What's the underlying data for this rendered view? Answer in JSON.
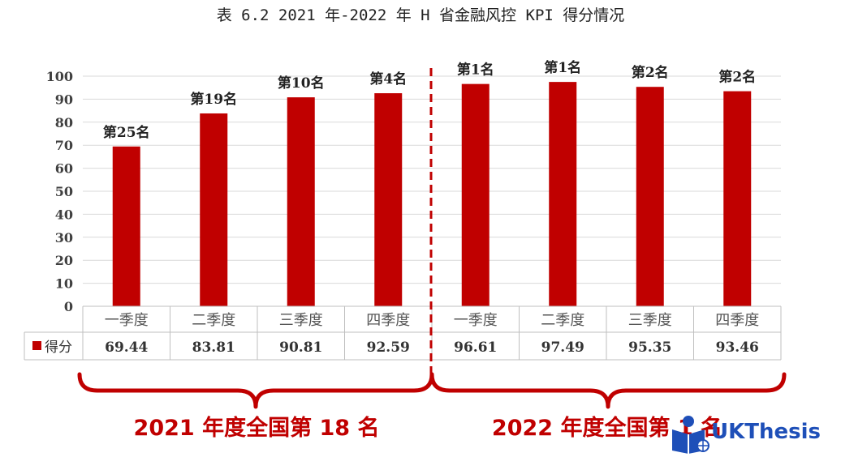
{
  "figure_title": "表 6.2  2021 年-2022 年 H 省金融风控 KPI 得分情况",
  "chart_data": {
    "type": "bar",
    "title": "表 6.2  2021 年-2022 年 H 省金融风控 KPI 得分情况",
    "categories": [
      "一季度",
      "二季度",
      "三季度",
      "四季度",
      "一季度",
      "二季度",
      "三季度",
      "四季度"
    ],
    "series": [
      {
        "name": "得分",
        "color": "#c00000",
        "values": [
          69.44,
          83.81,
          90.81,
          92.59,
          96.61,
          97.49,
          95.35,
          93.46
        ],
        "value_labels": [
          "69.44",
          "83.81",
          "90.81",
          "92.59",
          "96.61",
          "97.49",
          "95.35",
          "93.46"
        ]
      }
    ],
    "annotations": [
      "第25名",
      "第19名",
      "第10名",
      "第4名",
      "第1名",
      "第1名",
      "第2名",
      "第2名"
    ],
    "yticks": [
      0,
      10,
      20,
      30,
      40,
      50,
      60,
      70,
      80,
      90,
      100
    ],
    "ylim": [
      0,
      100
    ],
    "grid": true,
    "data_table": true,
    "groups": [
      {
        "label": "2021 年度全国第 18 名",
        "categories": [
          "一季度",
          "二季度",
          "三季度",
          "四季度"
        ]
      },
      {
        "label": "2022 年度全国第 1 名",
        "categories": [
          "一季度",
          "二季度",
          "三季度",
          "四季度"
        ]
      }
    ]
  },
  "watermark": {
    "text": "UKThesis",
    "icon": "reader-icon"
  }
}
